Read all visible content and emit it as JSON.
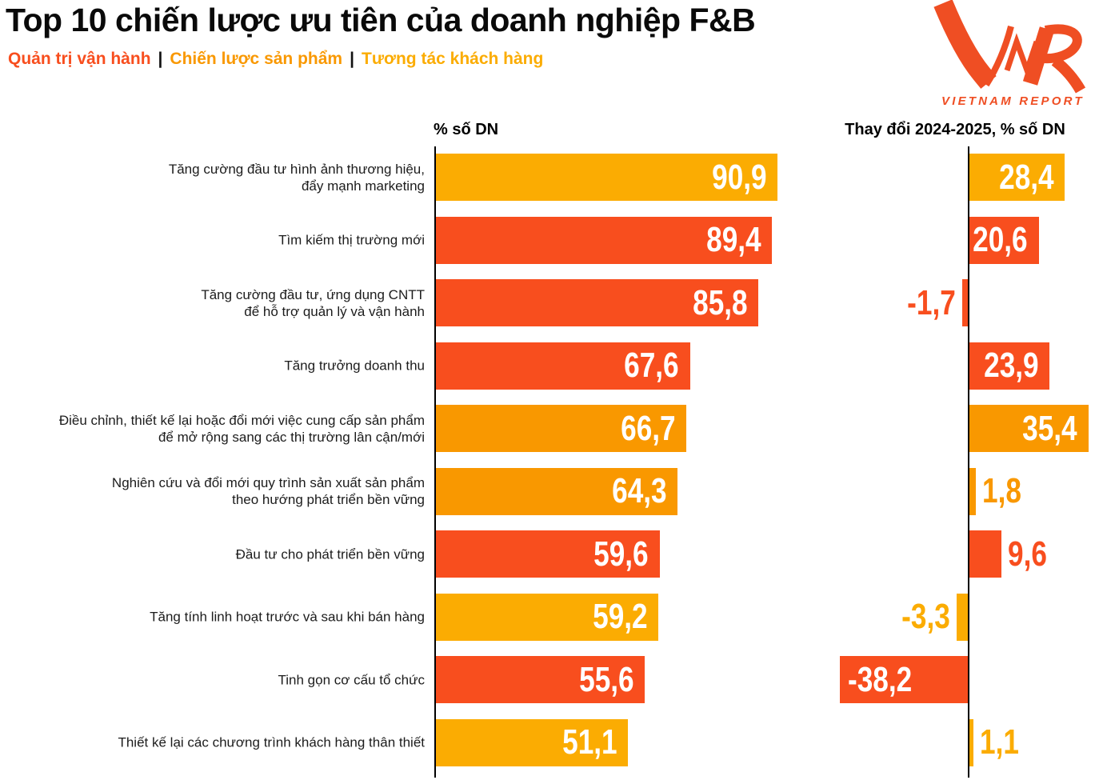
{
  "title": "Top 10 chiến lược ưu tiên của doanh nghiệp F&B",
  "legend_separator": "|",
  "legend": [
    {
      "key": "operations",
      "label": "Quản trị vận hành",
      "color": "#F84E1E"
    },
    {
      "key": "product",
      "label": "Chiến lược sản phẩm",
      "color": "#F99800"
    },
    {
      "key": "customer",
      "label": "Tương tác khách hàng",
      "color": "#FBAC02"
    }
  ],
  "logo": {
    "text": "VNR",
    "subtext": "VIETNAM REPORT",
    "color": "#EF4E23"
  },
  "columns": {
    "left_header": "% số DN",
    "right_header": "Thay đổi 2024-2025, % số DN"
  },
  "chart_data": {
    "type": "bar",
    "orientation": "horizontal",
    "title": "Top 10 chiến lược ưu tiên của doanh nghiệp F&B",
    "grid": false,
    "legend_position": "top-left",
    "panels": [
      {
        "header": "% số DN",
        "axis_origin": 0
      },
      {
        "header": "Thay đổi 2024-2025, % số DN",
        "axis_origin": 0
      }
    ],
    "categories": [
      "Tăng cường đầu tư hình ảnh thương hiệu, đẩy mạnh marketing",
      "Tìm kiếm thị trường mới",
      "Tăng cường đầu tư, ứng dụng CNTT để hỗ trợ quản lý và vận hành",
      "Tăng trưởng doanh thu",
      "Điều chỉnh, thiết kế lại hoặc đổi mới việc cung cấp sản phẩm để mở rộng sang các thị trường lân cận/mới",
      "Nghiên cứu và đổi mới quy trình sản xuất sản phẩm theo hướng phát triển bền vững",
      "Đầu tư cho phát triển bền vững",
      "Tăng tính linh hoạt trước và sau khi bán hàng",
      "Tinh gọn cơ cấu tổ chức",
      "Thiết kế lại các chương trình khách hàng thân thiết"
    ],
    "series": [
      {
        "name": "% số DN",
        "values": [
          90.9,
          89.4,
          85.8,
          67.6,
          66.7,
          64.3,
          59.6,
          59.2,
          55.6,
          51.1
        ]
      },
      {
        "name": "Thay đổi 2024-2025, % số DN",
        "values": [
          28.4,
          20.6,
          -1.7,
          23.9,
          35.4,
          1.8,
          9.6,
          -3.3,
          -38.2,
          1.1
        ]
      }
    ],
    "items": [
      {
        "label_lines": [
          "Tăng cường đầu tư hình ảnh thương hiệu,",
          "đẩy mạnh marketing"
        ],
        "group": "customer",
        "pct": 90.9,
        "pct_label": "90,9",
        "change": 28.4,
        "change_label": "28,4"
      },
      {
        "label_lines": [
          "Tìm kiếm thị trường mới"
        ],
        "group": "operations",
        "pct": 89.4,
        "pct_label": "89,4",
        "change": 20.6,
        "change_label": "20,6"
      },
      {
        "label_lines": [
          "Tăng cường đầu tư, ứng dụng CNTT",
          "để hỗ trợ quản lý và vận hành"
        ],
        "group": "operations",
        "pct": 85.8,
        "pct_label": "85,8",
        "change": -1.7,
        "change_label": "-1,7"
      },
      {
        "label_lines": [
          "Tăng trưởng doanh thu"
        ],
        "group": "operations",
        "pct": 67.6,
        "pct_label": "67,6",
        "change": 23.9,
        "change_label": "23,9"
      },
      {
        "label_lines": [
          "Điều chỉnh, thiết kế lại hoặc đổi mới việc cung cấp sản phẩm",
          "để mở rộng sang các thị trường lân cận/mới"
        ],
        "group": "product",
        "pct": 66.7,
        "pct_label": "66,7",
        "change": 35.4,
        "change_label": "35,4"
      },
      {
        "label_lines": [
          "Nghiên cứu và đổi mới quy trình sản xuất sản phẩm",
          "theo hướng phát triển bền vững"
        ],
        "group": "product",
        "pct": 64.3,
        "pct_label": "64,3",
        "change": 1.8,
        "change_label": "1,8"
      },
      {
        "label_lines": [
          "Đầu tư cho phát triển bền vững"
        ],
        "group": "operations",
        "pct": 59.6,
        "pct_label": "59,6",
        "change": 9.6,
        "change_label": "9,6"
      },
      {
        "label_lines": [
          "Tăng tính linh hoạt trước và sau khi bán hàng"
        ],
        "group": "customer",
        "pct": 59.2,
        "pct_label": "59,2",
        "change": -3.3,
        "change_label": "-3,3"
      },
      {
        "label_lines": [
          "Tinh gọn cơ cấu tổ chức"
        ],
        "group": "operations",
        "pct": 55.6,
        "pct_label": "55,6",
        "change": -38.2,
        "change_label": "-38,2"
      },
      {
        "label_lines": [
          "Thiết kế lại các chương trình khách hàng thân thiết"
        ],
        "group": "customer",
        "pct": 51.1,
        "pct_label": "51,1",
        "change": 1.1,
        "change_label": "1,1"
      }
    ]
  }
}
